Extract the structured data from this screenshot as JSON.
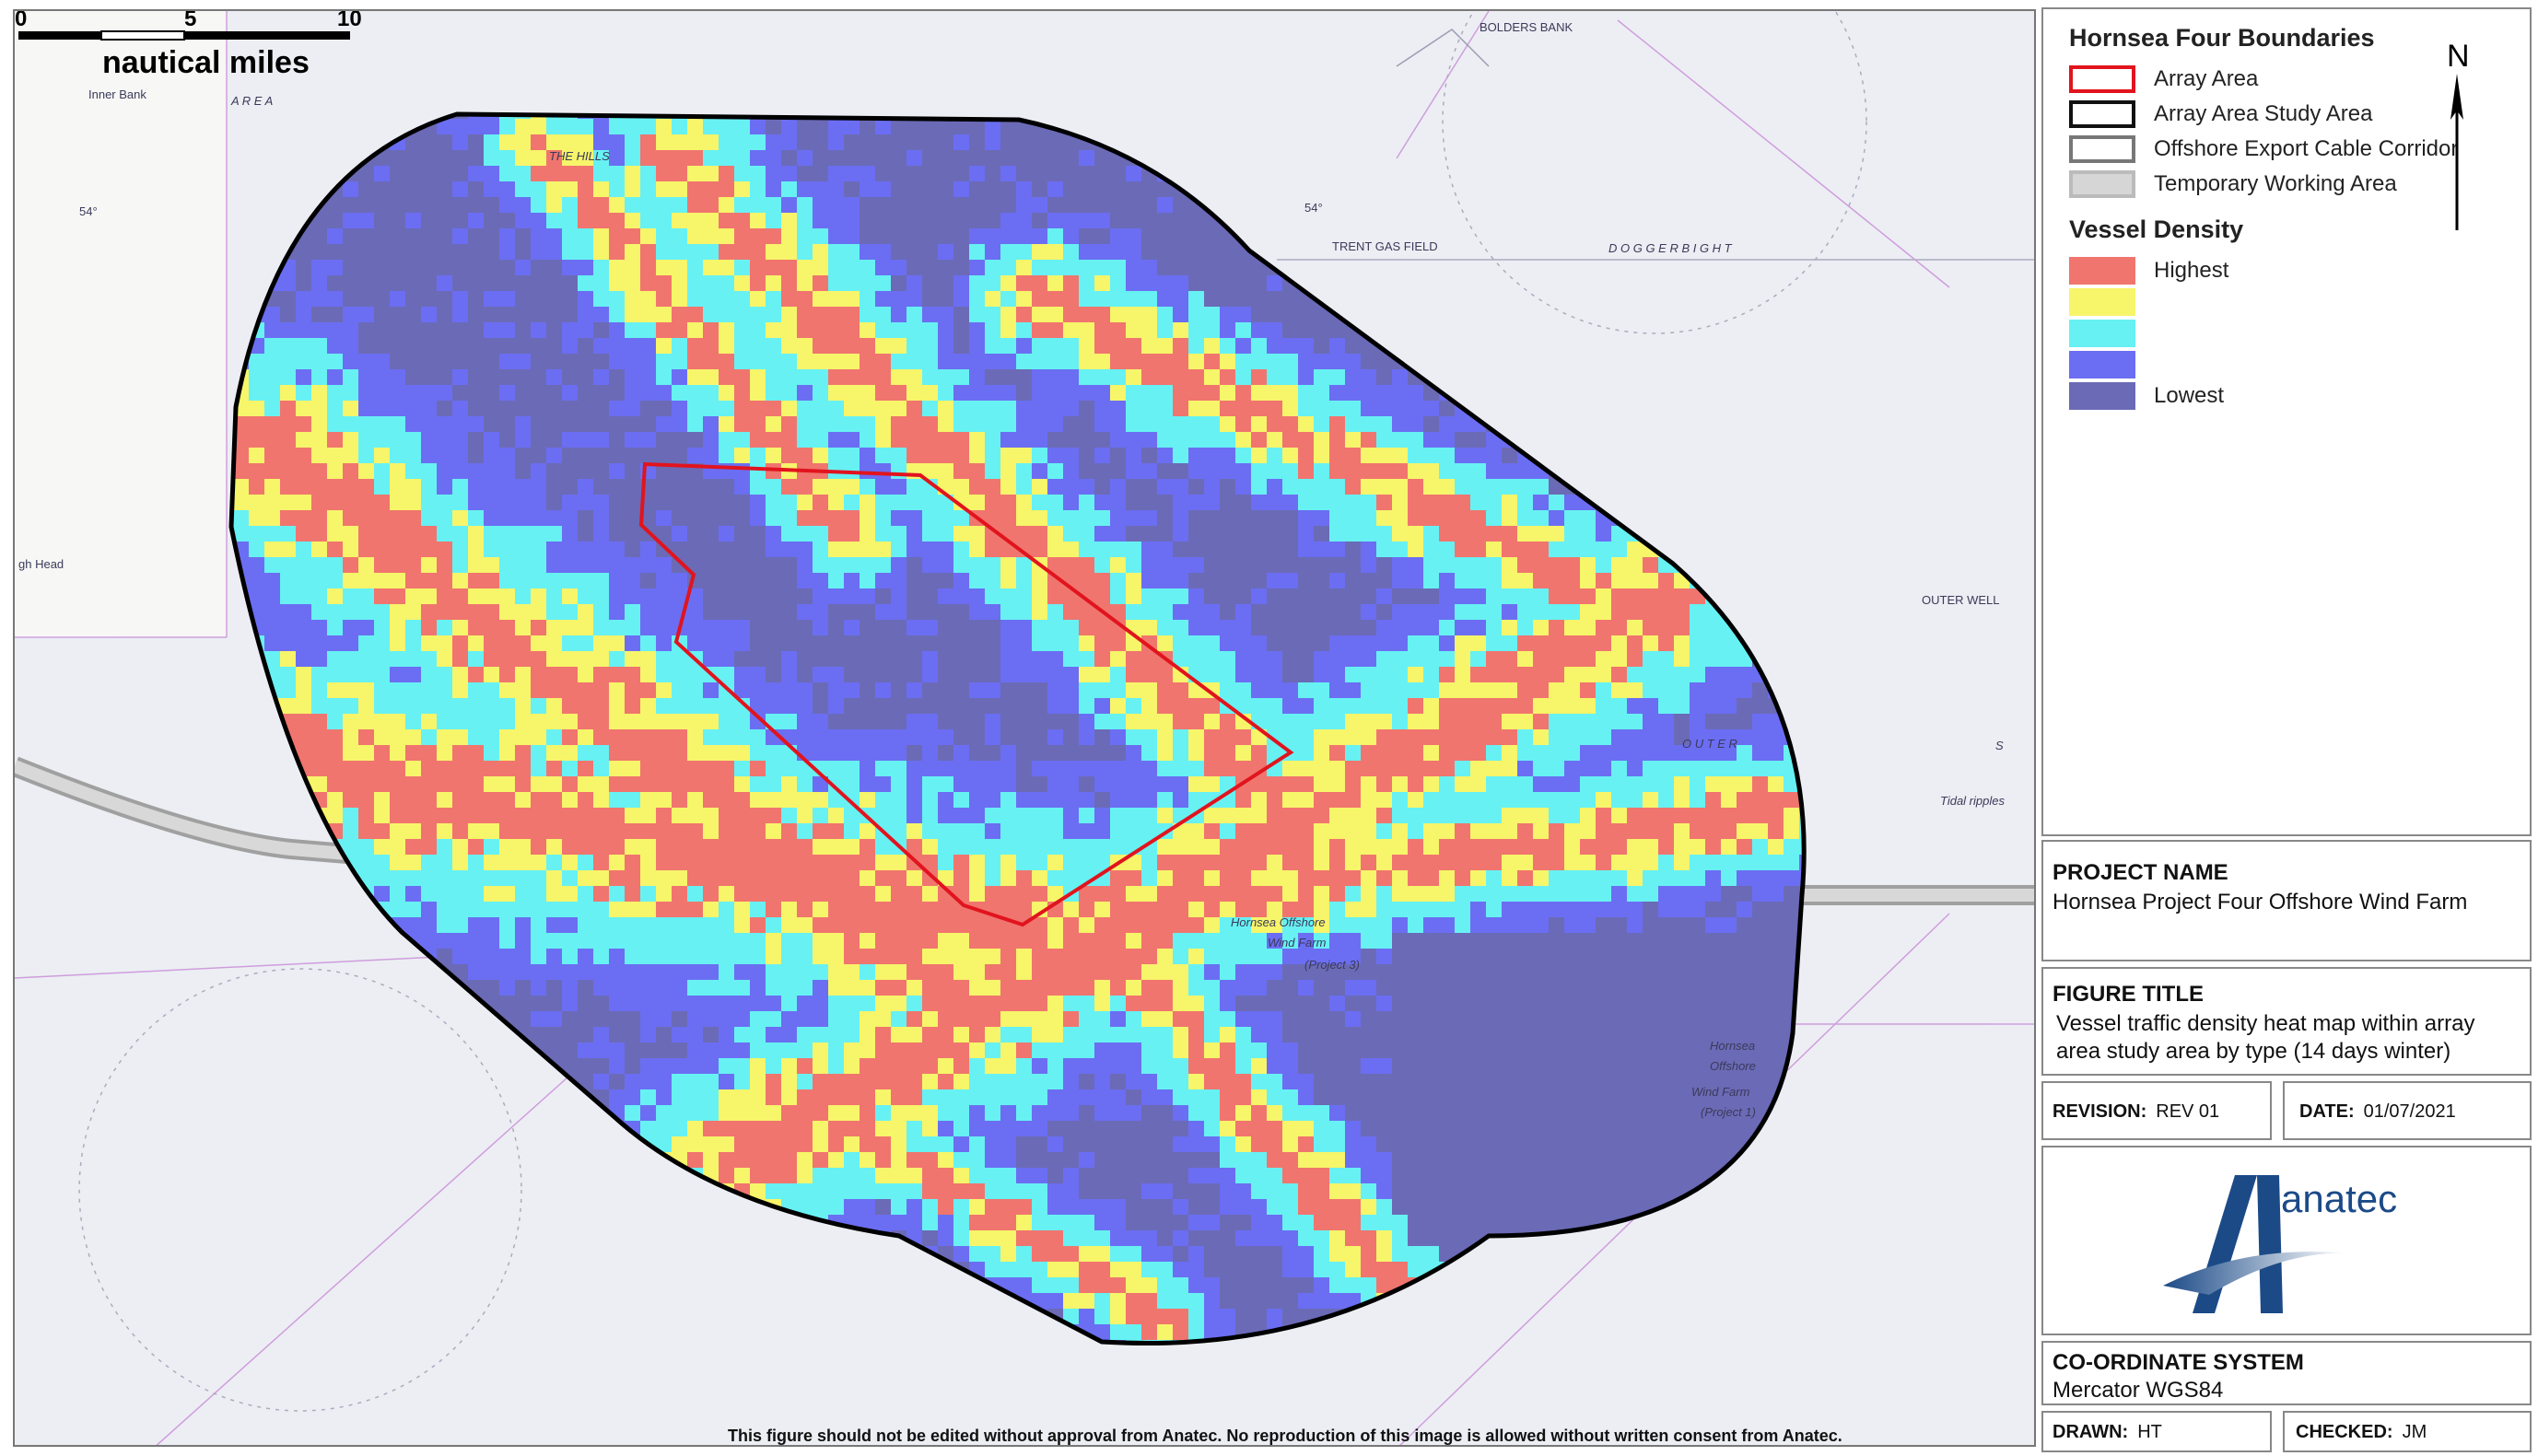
{
  "legend": {
    "boundaries_title": "Hornsea Four Boundaries",
    "boundaries": [
      {
        "label": "Array Area",
        "stroke": "#e1141e",
        "fill": "#ffffff"
      },
      {
        "label": "Array Area Study Area",
        "stroke": "#111111",
        "fill": "#ffffff"
      },
      {
        "label": "Offshore Export Cable Corridor",
        "stroke": "#777777",
        "fill": "#ffffff"
      },
      {
        "label": "Temporary Working Area",
        "stroke": "#bbbbbb",
        "fill": "#d6d6d6"
      }
    ],
    "density_title": "Vessel Density",
    "density": [
      {
        "label": "Highest",
        "color": "#f0756e"
      },
      {
        "label": "",
        "color": "#f7f56a"
      },
      {
        "label": "",
        "color": "#67f1f3"
      },
      {
        "label": "",
        "color": "#6b6ef2"
      },
      {
        "label": "Lowest",
        "color": "#6b6ab6"
      }
    ],
    "north_label": "N"
  },
  "project": {
    "heading": "PROJECT NAME",
    "value": "Hornsea Project Four Offshore Wind Farm"
  },
  "figure": {
    "heading": "FIGURE TITLE",
    "line1": "Vessel traffic density heat map within array",
    "line2": "area study area by type (14 days winter)"
  },
  "revision": {
    "key": "REVISION:",
    "value": "REV 01"
  },
  "date": {
    "key": "DATE:",
    "value": "01/07/2021"
  },
  "logo": {
    "text": "anatec",
    "color": "#1b4a87"
  },
  "coordinate": {
    "heading": "CO-ORDINATE SYSTEM",
    "value": "Mercator WGS84"
  },
  "drawn": {
    "key": "DRAWN:",
    "value": "HT"
  },
  "checked": {
    "key": "CHECKED:",
    "value": "JM"
  },
  "scale": {
    "ticks": [
      "0",
      "5",
      "10"
    ],
    "unit": "nautical miles"
  },
  "disclaimer": "This figure should not be edited without approval from Anatec. No reproduction of this image is allowed without written consent from Anatec.",
  "map_labels": {
    "bolders_bank": "BOLDERS BANK",
    "inner_bank": "Inner Bank",
    "area": "A R E A",
    "the_hills": "THE HILLS",
    "trent_gas_field": "TRENT GAS FIELD",
    "dogger_bight": "D O G G E R   B I G H T",
    "outer": "O U T E R",
    "outer_s": "S",
    "outer_well": "OUTER WELL",
    "hornsea_offshore": "Hornsea Offshore",
    "wind_farm": "Wind Farm",
    "project_3": "(Project 3)",
    "hornsea_p1": "Hornsea",
    "offshore_p1": "Offshore",
    "wind_farm_p1": "Wind Farm",
    "project_1": "(Project 1)",
    "lat_label": "54°",
    "lat_label2": "54°",
    "tidal_ripples": "Tidal ripples",
    "head": "gh Head"
  }
}
